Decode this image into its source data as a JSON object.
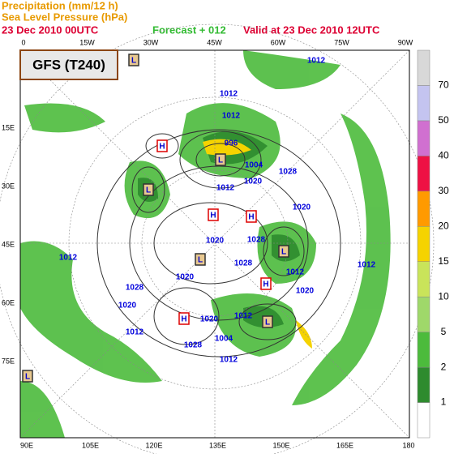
{
  "header": {
    "line1": "Precipitation (mm/12 h)",
    "line2": "Sea Level Pressure (hPa)",
    "init": "23 Dec 2010 00UTC",
    "forecast": "Forecast + 012",
    "valid": "Valid at  23 Dec 2010 12UTC"
  },
  "model_label": "GFS (T240)",
  "top_labels": [
    "0",
    "15W",
    "30W",
    "45W",
    "60W",
    "75W",
    "90W"
  ],
  "left_labels": [
    "15E",
    "30E",
    "45E",
    "60E",
    "75E"
  ],
  "bottom_labels": [
    "90E",
    "105E",
    "120E",
    "135E",
    "150E",
    "165E",
    "180"
  ],
  "colorbar": {
    "levels": [
      1,
      2,
      5,
      10,
      15,
      20,
      30,
      40,
      50,
      70
    ],
    "colors": [
      "#ffffff",
      "#2e8b2e",
      "#4cbb3c",
      "#9fd86a",
      "#c9e45a",
      "#f5d300",
      "#ff9a00",
      "#ee1144",
      "#d070d0",
      "#c4c4f0",
      "#d8d8d8"
    ]
  },
  "isobar_labels": [
    "1012",
    "1012",
    "1012",
    "996",
    "1004",
    "1028",
    "1012",
    "1020",
    "1020",
    "1020",
    "1028",
    "1028",
    "1012",
    "1012",
    "1012",
    "1020",
    "1020",
    "1028",
    "1020",
    "1012",
    "1020",
    "1012",
    "1004",
    "1028",
    "1012"
  ],
  "centers": [
    "L",
    "L",
    "H",
    "L",
    "H",
    "H",
    "L",
    "L",
    "H",
    "H",
    "L",
    "L"
  ]
}
